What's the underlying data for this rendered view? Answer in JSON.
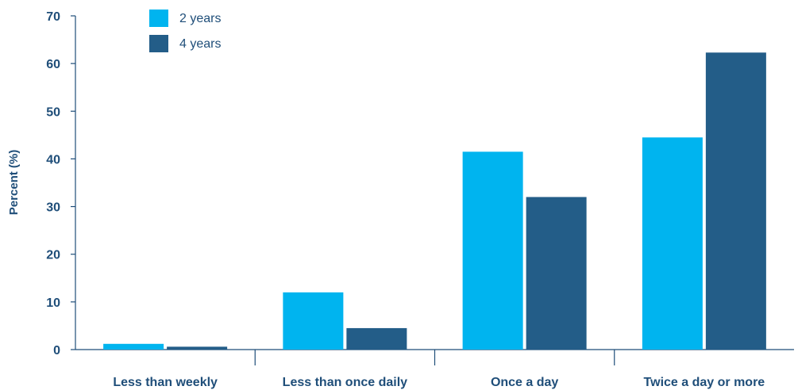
{
  "chart_data": {
    "type": "bar",
    "categories": [
      "Less than weekly",
      "Less than once daily",
      "Once a day",
      "Twice a day or more"
    ],
    "series": [
      {
        "name": "2 years",
        "values": [
          1.2,
          12,
          41.5,
          44.5
        ],
        "color": "#00b4ef"
      },
      {
        "name": "4 years",
        "values": [
          0.6,
          4.5,
          32,
          62.3
        ],
        "color": "#235d88"
      }
    ],
    "ylabel": "Percent (%)",
    "xlabel": "",
    "ylim": [
      0,
      70
    ],
    "yticks": [
      0,
      10,
      20,
      30,
      40,
      50,
      60,
      70
    ],
    "grid": false,
    "legend_position": "top-left",
    "axis_color": "#1f4e79"
  }
}
